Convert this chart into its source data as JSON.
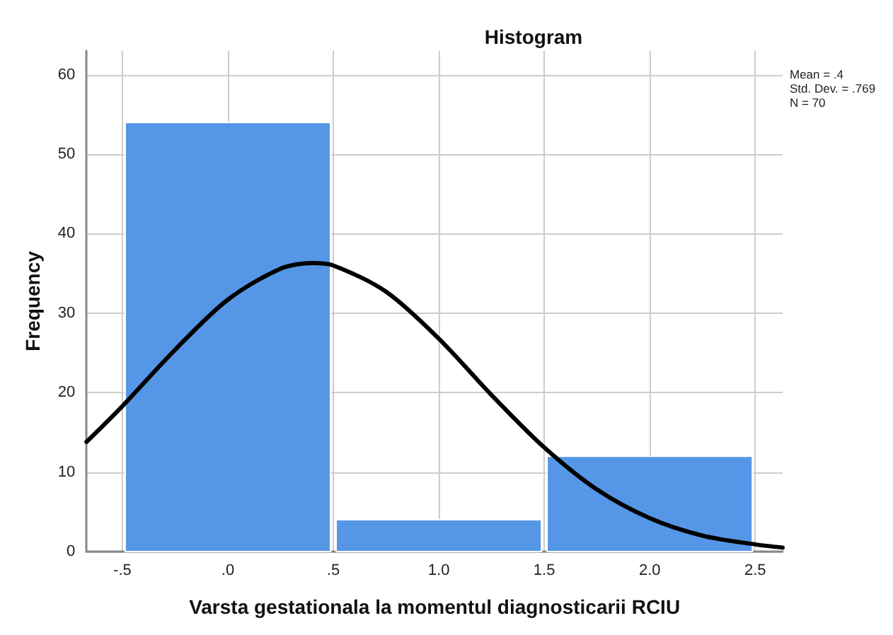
{
  "chart_data": {
    "type": "histogram",
    "title": "Histogram",
    "xlabel": "Varsta gestationala la momentul diagnosticarii RCIU",
    "ylabel": "Frequency",
    "bins": [
      -0.5,
      0.5,
      1.5,
      2.5
    ],
    "values": [
      54,
      4,
      12
    ],
    "color": "#5596e6",
    "series": [
      {
        "type": "line",
        "color": "#000000",
        "x": [
          -0.67,
          -0.5,
          -0.25,
          0,
          0.25,
          0.4,
          0.5,
          0.75,
          1.0,
          1.25,
          1.5,
          1.75,
          2.0,
          2.25,
          2.5,
          2.63
        ],
        "values": [
          13.8,
          18.3,
          25.4,
          31.7,
          35.6,
          36.3,
          36.0,
          32.7,
          26.8,
          19.7,
          13.1,
          7.8,
          4.2,
          2.0,
          0.9,
          0.5
        ]
      }
    ],
    "xlim": [
      -0.67,
      2.63
    ],
    "xticks": [
      {
        "value": -0.5,
        "label": "-.5"
      },
      {
        "value": 0,
        "label": ".0"
      },
      {
        "value": 0.5,
        "label": ".5"
      },
      {
        "value": 1,
        "label": "1.0"
      },
      {
        "value": 1.5,
        "label": "1.5"
      },
      {
        "value": 2,
        "label": "2.0"
      },
      {
        "value": 2.5,
        "label": "2.5"
      }
    ],
    "ylim": [
      0,
      63
    ],
    "yticks": [
      0,
      10,
      20,
      30,
      40,
      50,
      60
    ],
    "grid": true,
    "line_style": "solid",
    "marker": "none",
    "annotations": [
      "Mean = .4",
      "Std. Dev. = .769",
      "N = 70"
    ]
  }
}
